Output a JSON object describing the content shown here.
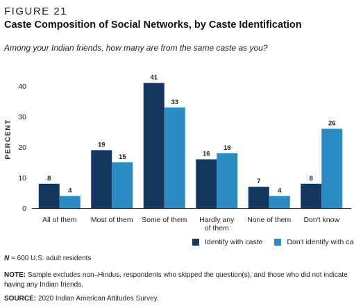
{
  "figure_label": "FIGURE 21",
  "title": "Caste Composition of Social Networks, by Caste Identification",
  "subtitle": "Among your Indian friends, how many are from the same caste as you?",
  "n_prefix": "N",
  "n_text": " = 600 U.S. adult residents",
  "note_label": "NOTE:",
  "note_text": " Sample excludes non–Hindus, respondents who skipped the question(s), and those who did not indicate having any Indian friends.",
  "source_label": "SOURCE:",
  "source_text": " 2020 Indian American Attitudes Survey.",
  "chart_data": {
    "type": "bar",
    "categories": [
      "All of them",
      "Most of them",
      "Some of them",
      "Hardly any of them",
      "None of them",
      "Don't know"
    ],
    "series": [
      {
        "name": "Identify with caste",
        "color": "#13375f",
        "values": [
          8,
          19,
          41,
          16,
          7,
          8
        ]
      },
      {
        "name": "Don't identify with caste",
        "color": "#2b8cc4",
        "values": [
          4,
          15,
          33,
          18,
          4,
          26
        ]
      }
    ],
    "ylabel": "PERCENT",
    "ylim": [
      0,
      45
    ],
    "yticks": [
      0,
      10,
      20,
      30,
      40
    ],
    "legend_position": "bottom-right",
    "grid": false
  }
}
